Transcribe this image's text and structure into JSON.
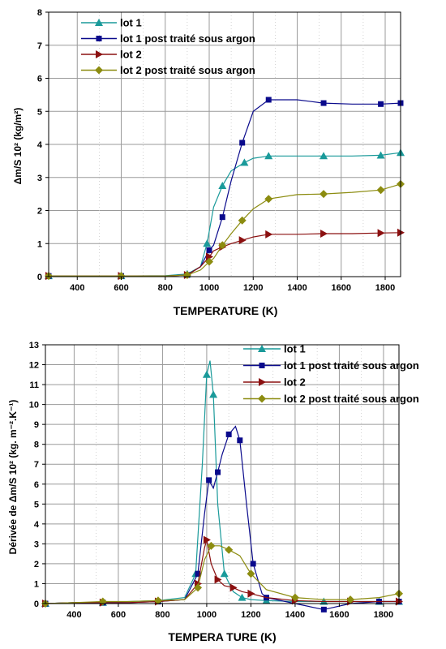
{
  "colors": {
    "lot1": "#1a9a9a",
    "lot1_post": "#0a0a8c",
    "lot2": "#8b1010",
    "lot2_post": "#8c8c10",
    "grid": "#9a9a9a",
    "axis": "#000000"
  },
  "chart_data": [
    {
      "type": "line",
      "xlabel": "TEMPERATURE (K)",
      "ylabel": "Δm/S 10² (kg/m²)",
      "xlim": [
        270,
        1870
      ],
      "ylim": [
        0,
        8
      ],
      "xticks": [
        "400",
        "600",
        "800",
        "1000",
        "1200",
        "1400",
        "1600",
        "1800"
      ],
      "yticks": [
        "0",
        "1",
        "2",
        "3",
        "4",
        "5",
        "6",
        "7",
        "8"
      ],
      "legend_position": "top-left",
      "grid": true,
      "series": [
        {
          "name": "lot 1",
          "marker": "triangle-up",
          "color_key": "lot1",
          "x": [
            270,
            400,
            600,
            800,
            900,
            960,
            990,
            1020,
            1060,
            1100,
            1160,
            1200,
            1270,
            1400,
            1520,
            1650,
            1780,
            1870
          ],
          "y": [
            0.02,
            0.02,
            0.02,
            0.03,
            0.08,
            0.3,
            1.0,
            2.1,
            2.75,
            3.2,
            3.45,
            3.58,
            3.65,
            3.65,
            3.65,
            3.65,
            3.67,
            3.75
          ]
        },
        {
          "name": "lot 1 post traité sous argon",
          "marker": "square",
          "color_key": "lot1_post",
          "x": [
            270,
            400,
            600,
            800,
            900,
            960,
            1000,
            1020,
            1060,
            1100,
            1150,
            1200,
            1270,
            1400,
            1520,
            1650,
            1780,
            1870
          ],
          "y": [
            0.02,
            0.02,
            0.02,
            0.02,
            0.05,
            0.3,
            0.8,
            0.95,
            1.8,
            2.9,
            4.05,
            5.0,
            5.35,
            5.35,
            5.25,
            5.22,
            5.22,
            5.25
          ]
        },
        {
          "name": "lot 2",
          "marker": "triangle-right",
          "color_key": "lot2",
          "x": [
            270,
            400,
            600,
            800,
            900,
            960,
            1000,
            1020,
            1060,
            1100,
            1150,
            1200,
            1270,
            1400,
            1520,
            1650,
            1780,
            1870
          ],
          "y": [
            0.02,
            0.02,
            0.02,
            0.02,
            0.05,
            0.3,
            0.6,
            0.78,
            0.9,
            1.0,
            1.1,
            1.2,
            1.28,
            1.28,
            1.3,
            1.3,
            1.32,
            1.33
          ]
        },
        {
          "name": "lot 2 post traité sous argon",
          "marker": "diamond",
          "color_key": "lot2_post",
          "x": [
            270,
            400,
            600,
            800,
            900,
            960,
            1000,
            1020,
            1060,
            1100,
            1150,
            1200,
            1270,
            1400,
            1520,
            1650,
            1780,
            1870
          ],
          "y": [
            0.02,
            0.02,
            0.02,
            0.02,
            0.05,
            0.2,
            0.45,
            0.55,
            0.95,
            1.3,
            1.7,
            2.05,
            2.35,
            2.48,
            2.5,
            2.55,
            2.62,
            2.8
          ]
        }
      ]
    },
    {
      "type": "line",
      "xlabel": "TEMPERA TURE (K)",
      "ylabel": "Dérivée de Δm/S 10² (kg. m⁻².K⁻¹)",
      "xlim": [
        270,
        1870
      ],
      "ylim": [
        0,
        13
      ],
      "xticks": [
        "400",
        "600",
        "800",
        "1000",
        "1200",
        "1400",
        "1600",
        "1800"
      ],
      "yticks": [
        "0",
        "1",
        "2",
        "3",
        "4",
        "5",
        "6",
        "7",
        "8",
        "9",
        "10",
        "11",
        "12",
        "13"
      ],
      "legend_position": "top-right",
      "grid": true,
      "series": [
        {
          "name": "lot 1",
          "marker": "triangle-up",
          "color_key": "lot1",
          "x": [
            270,
            400,
            530,
            650,
            780,
            900,
            950,
            980,
            1000,
            1015,
            1030,
            1050,
            1080,
            1120,
            1160,
            1200,
            1270,
            1400,
            1530,
            1650,
            1780,
            1870
          ],
          "y": [
            0.0,
            0.05,
            0.05,
            0.1,
            0.15,
            0.3,
            1.5,
            7.0,
            11.5,
            12.2,
            10.5,
            5.0,
            1.5,
            0.6,
            0.3,
            0.2,
            0.15,
            0.1,
            0.1,
            0.1,
            0.1,
            0.1
          ]
        },
        {
          "name": "lot 1 post traité sous argon",
          "marker": "square",
          "color_key": "lot1_post",
          "x": [
            270,
            400,
            530,
            650,
            780,
            900,
            960,
            990,
            1010,
            1030,
            1050,
            1070,
            1100,
            1130,
            1150,
            1180,
            1210,
            1250,
            1270,
            1400,
            1530,
            1650,
            1780,
            1870
          ],
          "y": [
            0.0,
            0.05,
            0.05,
            0.05,
            0.1,
            0.2,
            1.5,
            4.5,
            6.2,
            5.8,
            6.6,
            7.5,
            8.5,
            8.9,
            8.2,
            5.0,
            2.0,
            0.5,
            0.3,
            0.0,
            -0.3,
            0.0,
            0.1,
            0.1
          ]
        },
        {
          "name": "lot 2",
          "marker": "triangle-right",
          "color_key": "lot2",
          "x": [
            270,
            400,
            530,
            650,
            780,
            900,
            960,
            990,
            1000,
            1020,
            1050,
            1080,
            1120,
            1160,
            1200,
            1270,
            1400,
            1530,
            1650,
            1780,
            1870
          ],
          "y": [
            0.0,
            0.05,
            0.05,
            0.05,
            0.1,
            0.2,
            1.0,
            2.8,
            3.2,
            2.0,
            1.2,
            0.9,
            0.8,
            0.6,
            0.5,
            0.3,
            0.15,
            0.1,
            0.1,
            0.1,
            0.1
          ]
        },
        {
          "name": "lot 2 post traité sous argon",
          "marker": "diamond",
          "color_key": "lot2_post",
          "x": [
            270,
            400,
            530,
            650,
            780,
            900,
            960,
            990,
            1020,
            1060,
            1100,
            1150,
            1200,
            1270,
            1400,
            1530,
            1650,
            1780,
            1870
          ],
          "y": [
            0.0,
            0.05,
            0.1,
            0.1,
            0.15,
            0.2,
            0.8,
            2.2,
            2.9,
            2.9,
            2.7,
            2.4,
            1.5,
            0.7,
            0.3,
            0.2,
            0.2,
            0.3,
            0.5
          ]
        }
      ]
    }
  ]
}
